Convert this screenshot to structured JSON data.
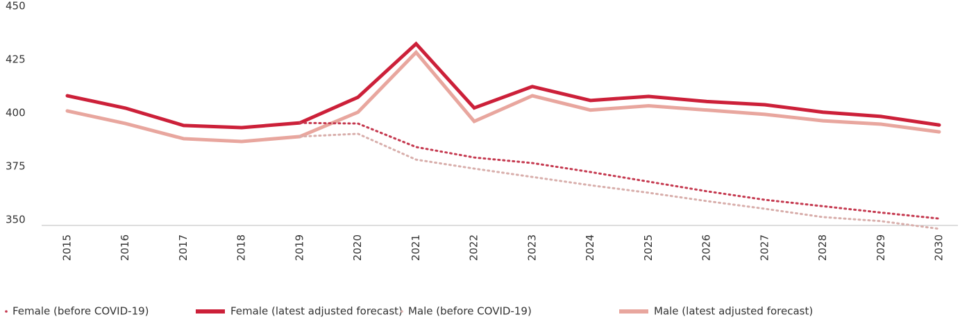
{
  "chart_data": {
    "type": "line",
    "categories": [
      "2015",
      "2016",
      "2017",
      "2018",
      "2019",
      "2020",
      "2021",
      "2022",
      "2023",
      "2024",
      "2025",
      "2026",
      "2027",
      "2028",
      "2029",
      "2030"
    ],
    "series": [
      {
        "name": "Female (before COVID-19)",
        "color": "#c53a50",
        "dashed": true,
        "values": [
          null,
          null,
          null,
          null,
          398,
          397.7,
          386.7,
          381.8,
          379.2,
          375,
          370.5,
          366,
          362,
          359,
          356,
          353.2
        ]
      },
      {
        "name": "Female (latest adjusted forecast)",
        "color": "#cc2039",
        "dashed": false,
        "values": [
          410.7,
          404.9,
          396.8,
          395.8,
          398,
          410,
          435,
          405,
          415,
          408.5,
          410.4,
          408,
          406.5,
          403,
          401,
          397
        ]
      },
      {
        "name": "Male (before COVID-19)",
        "color": "#d8aeab",
        "dashed": true,
        "values": [
          null,
          null,
          null,
          null,
          391.6,
          392.9,
          380.8,
          376.6,
          372.7,
          368.8,
          365.3,
          361.4,
          357.8,
          353.9,
          352,
          348.4
        ]
      },
      {
        "name": "Male (latest adjusted forecast)",
        "color": "#e8a69e",
        "dashed": false,
        "values": [
          403.6,
          397.7,
          390.6,
          389.3,
          391.6,
          403,
          431,
          398.7,
          410.7,
          404,
          406,
          404,
          402,
          399,
          397.4,
          393.8
        ]
      }
    ],
    "ylim": [
      350,
      450
    ],
    "yticks": [
      350,
      375,
      400,
      425,
      450
    ],
    "grid": false,
    "legend": "bottom"
  }
}
